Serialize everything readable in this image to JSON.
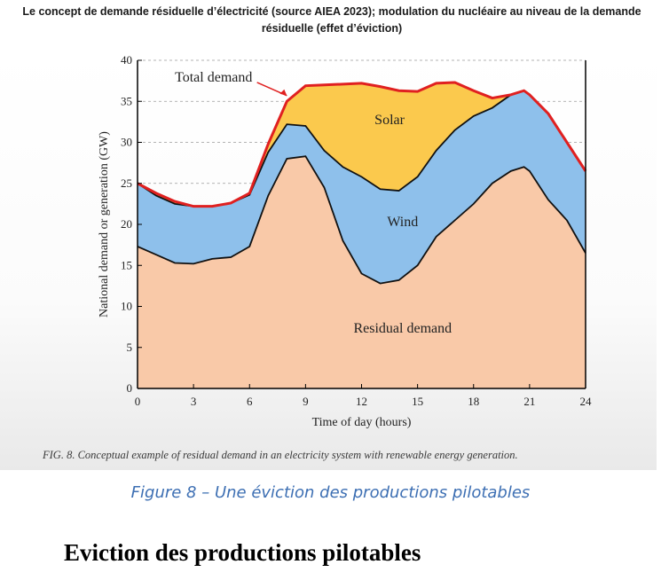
{
  "header": {
    "title": "Le concept de demande résiduelle d’électricité (source AIEA 2023); modulation du nucléaire au niveau de la demande résiduelle (effet d’éviction)"
  },
  "figure": {
    "caption": "FIG. 8.  Conceptual example of residual demand in an electricity system with renewable energy generation.",
    "subtitle": "Figure 8 – Une éviction des productions pilotables"
  },
  "section": {
    "heading": "Eviction des productions pilotables"
  },
  "chart_data": {
    "type": "area",
    "xlabel": "Time of day (hours)",
    "ylabel": "National demand or generation (GW)",
    "xlim": [
      0,
      24
    ],
    "ylim": [
      0,
      40
    ],
    "xticks": [
      0,
      3,
      6,
      9,
      12,
      15,
      18,
      21,
      24
    ],
    "yticks": [
      0,
      5,
      10,
      15,
      20,
      25,
      30,
      35,
      40
    ],
    "grid": "horizontal dashed",
    "x": [
      0,
      1,
      2,
      3,
      4,
      5,
      6,
      7,
      8,
      9,
      10,
      11,
      12,
      13,
      14,
      15,
      16,
      17,
      18,
      19,
      20,
      20.7,
      21,
      22,
      23,
      24
    ],
    "series": [
      {
        "name": "Residual demand",
        "color": "#f9c9a8",
        "values": [
          17.3,
          16.3,
          15.3,
          15.2,
          15.8,
          16.0,
          17.3,
          23.5,
          28.0,
          28.3,
          24.5,
          18.0,
          14.0,
          12.8,
          13.2,
          15.0,
          18.5,
          20.5,
          22.5,
          25.0,
          26.5,
          27.0,
          26.5,
          23.0,
          20.5,
          16.5
        ]
      },
      {
        "name": "Wind",
        "color": "#8ec0eb",
        "values": [
          25.0,
          23.5,
          22.5,
          22.2,
          22.2,
          22.6,
          23.6,
          28.8,
          32.2,
          32.0,
          29.0,
          27.0,
          25.8,
          24.3,
          24.1,
          25.8,
          29.0,
          31.5,
          33.2,
          34.2,
          35.8,
          36.3,
          35.8,
          33.5,
          30.0,
          26.5
        ]
      },
      {
        "name": "Solar",
        "color": "#fbc94d",
        "values": [
          25.0,
          23.8,
          22.8,
          22.2,
          22.2,
          22.6,
          23.8,
          29.8,
          35.0,
          36.9,
          37.0,
          37.1,
          37.2,
          36.8,
          36.3,
          36.2,
          37.2,
          37.3,
          36.3,
          35.4,
          35.8,
          36.3,
          35.8,
          33.5,
          30.0,
          26.5
        ]
      }
    ],
    "total_demand_line": {
      "name": "Total demand",
      "color": "#e02020"
    },
    "area_labels": [
      "Solar",
      "Wind",
      "Residual demand"
    ],
    "annotation": "Total demand"
  }
}
